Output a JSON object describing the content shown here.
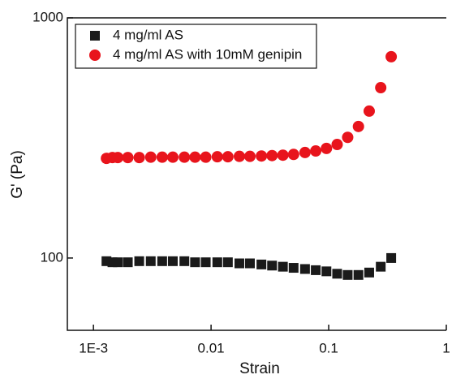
{
  "chart_data": {
    "type": "scatter",
    "x_label": "Strain",
    "y_label": "G' (Pa)",
    "xlog": true,
    "ylog": true,
    "xlim": [
      0.0006,
      1
    ],
    "ylim": [
      50,
      1000
    ],
    "xticks": [
      {
        "value": 0.001,
        "label": "1E-3"
      },
      0.01,
      0.1,
      1
    ],
    "yticks": [
      100,
      1000
    ],
    "legend": "upper left",
    "x": [
      0.00129,
      0.00145,
      0.00161,
      0.00196,
      0.00245,
      0.00307,
      0.00384,
      0.00473,
      0.00593,
      0.00731,
      0.00901,
      0.0113,
      0.0139,
      0.0174,
      0.0214,
      0.0268,
      0.033,
      0.0408,
      0.0503,
      0.0629,
      0.0776,
      0.0957,
      0.118,
      0.145,
      0.179,
      0.221,
      0.277,
      0.34
    ],
    "series": [
      {
        "name": "4 mg/ml AS",
        "color": "#1a1a1a",
        "marker": "square",
        "values": [
          97,
          96,
          96,
          96,
          97,
          97,
          97,
          97,
          97,
          96,
          96,
          96,
          96,
          95,
          95,
          94,
          93,
          92,
          91,
          90,
          89,
          88,
          86,
          85,
          85,
          87,
          92,
          100
        ]
      },
      {
        "name": "4 mg/ml AS with 10mM genipin",
        "color": "#e8141c",
        "marker": "circle",
        "values": [
          260,
          262,
          262,
          262,
          262,
          263,
          263,
          263,
          263,
          263,
          263,
          264,
          264,
          265,
          265,
          266,
          267,
          268,
          270,
          275,
          279,
          286,
          297,
          318,
          353,
          409,
          512,
          689
        ]
      }
    ]
  }
}
